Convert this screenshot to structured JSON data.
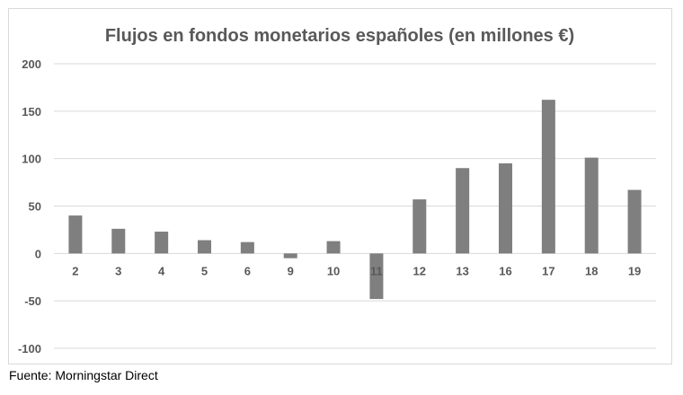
{
  "colors": {
    "bar": "#7f7f7f",
    "grid": "#d9d9d9",
    "title": "#595959",
    "tick": "#595959"
  },
  "source": "Fuente: Morningstar Direct",
  "chart_data": {
    "type": "bar",
    "title": "Flujos en fondos monetarios españoles (en millones €)",
    "xlabel": "",
    "ylabel": "",
    "ylim": [
      -100,
      200
    ],
    "yticks": [
      200,
      150,
      100,
      50,
      0,
      -50,
      -100
    ],
    "grid": true,
    "legend": "none",
    "categories": [
      "2",
      "3",
      "4",
      "5",
      "6",
      "9",
      "10",
      "11",
      "12",
      "13",
      "16",
      "17",
      "18",
      "19"
    ],
    "series": [
      {
        "name": "Flujos",
        "values": [
          40,
          26,
          23,
          14,
          12,
          -5,
          13,
          -48,
          57,
          90,
          95,
          162,
          101,
          67
        ]
      }
    ]
  }
}
